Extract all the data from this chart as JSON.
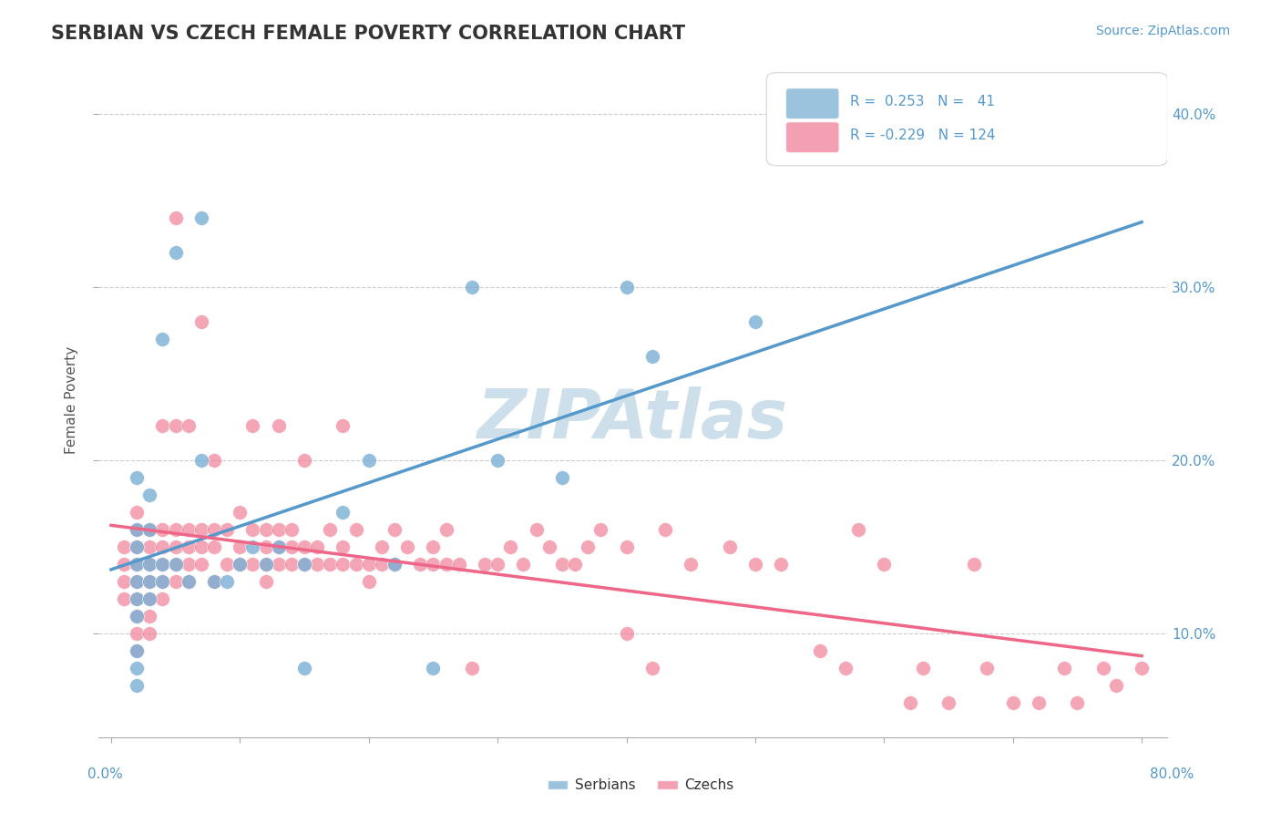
{
  "title": "SERBIAN VS CZECH FEMALE POVERTY CORRELATION CHART",
  "source_text": "Source: ZipAtlas.com",
  "ylabel": "Female Poverty",
  "serbian_color": "#7aafd4",
  "czech_color": "#f08098",
  "serbian_line_color": "#5599cc",
  "czech_line_color": "#ee6688",
  "dashed_line_color": "#99cccc",
  "watermark_color": "#c8dce8",
  "background_color": "#ffffff",
  "grid_color": "#cccccc",
  "R_serbian": 0.253,
  "N_serbian": 41,
  "R_czech": -0.229,
  "N_czech": 124,
  "serbian_points": [
    [
      0.02,
      0.19
    ],
    [
      0.02,
      0.16
    ],
    [
      0.02,
      0.15
    ],
    [
      0.02,
      0.14
    ],
    [
      0.02,
      0.13
    ],
    [
      0.02,
      0.12
    ],
    [
      0.02,
      0.11
    ],
    [
      0.02,
      0.09
    ],
    [
      0.02,
      0.08
    ],
    [
      0.02,
      0.07
    ],
    [
      0.03,
      0.18
    ],
    [
      0.03,
      0.16
    ],
    [
      0.03,
      0.14
    ],
    [
      0.03,
      0.13
    ],
    [
      0.03,
      0.12
    ],
    [
      0.04,
      0.27
    ],
    [
      0.04,
      0.14
    ],
    [
      0.04,
      0.13
    ],
    [
      0.05,
      0.32
    ],
    [
      0.05,
      0.14
    ],
    [
      0.06,
      0.13
    ],
    [
      0.07,
      0.34
    ],
    [
      0.07,
      0.2
    ],
    [
      0.08,
      0.13
    ],
    [
      0.09,
      0.13
    ],
    [
      0.1,
      0.14
    ],
    [
      0.11,
      0.15
    ],
    [
      0.12,
      0.14
    ],
    [
      0.13,
      0.15
    ],
    [
      0.15,
      0.08
    ],
    [
      0.15,
      0.14
    ],
    [
      0.18,
      0.17
    ],
    [
      0.2,
      0.2
    ],
    [
      0.22,
      0.14
    ],
    [
      0.25,
      0.08
    ],
    [
      0.28,
      0.3
    ],
    [
      0.3,
      0.2
    ],
    [
      0.35,
      0.19
    ],
    [
      0.4,
      0.3
    ],
    [
      0.42,
      0.26
    ],
    [
      0.5,
      0.28
    ]
  ],
  "czech_points": [
    [
      0.01,
      0.15
    ],
    [
      0.01,
      0.14
    ],
    [
      0.01,
      0.13
    ],
    [
      0.01,
      0.12
    ],
    [
      0.02,
      0.17
    ],
    [
      0.02,
      0.16
    ],
    [
      0.02,
      0.15
    ],
    [
      0.02,
      0.14
    ],
    [
      0.02,
      0.13
    ],
    [
      0.02,
      0.12
    ],
    [
      0.02,
      0.11
    ],
    [
      0.02,
      0.1
    ],
    [
      0.02,
      0.09
    ],
    [
      0.03,
      0.16
    ],
    [
      0.03,
      0.15
    ],
    [
      0.03,
      0.14
    ],
    [
      0.03,
      0.13
    ],
    [
      0.03,
      0.12
    ],
    [
      0.03,
      0.11
    ],
    [
      0.03,
      0.1
    ],
    [
      0.04,
      0.22
    ],
    [
      0.04,
      0.16
    ],
    [
      0.04,
      0.15
    ],
    [
      0.04,
      0.14
    ],
    [
      0.04,
      0.13
    ],
    [
      0.04,
      0.12
    ],
    [
      0.05,
      0.34
    ],
    [
      0.05,
      0.22
    ],
    [
      0.05,
      0.16
    ],
    [
      0.05,
      0.15
    ],
    [
      0.05,
      0.14
    ],
    [
      0.05,
      0.13
    ],
    [
      0.06,
      0.22
    ],
    [
      0.06,
      0.16
    ],
    [
      0.06,
      0.15
    ],
    [
      0.06,
      0.14
    ],
    [
      0.06,
      0.13
    ],
    [
      0.07,
      0.28
    ],
    [
      0.07,
      0.16
    ],
    [
      0.07,
      0.15
    ],
    [
      0.07,
      0.14
    ],
    [
      0.08,
      0.2
    ],
    [
      0.08,
      0.16
    ],
    [
      0.08,
      0.15
    ],
    [
      0.08,
      0.13
    ],
    [
      0.09,
      0.16
    ],
    [
      0.09,
      0.14
    ],
    [
      0.1,
      0.17
    ],
    [
      0.1,
      0.15
    ],
    [
      0.1,
      0.14
    ],
    [
      0.11,
      0.22
    ],
    [
      0.11,
      0.16
    ],
    [
      0.11,
      0.14
    ],
    [
      0.12,
      0.16
    ],
    [
      0.12,
      0.15
    ],
    [
      0.12,
      0.14
    ],
    [
      0.12,
      0.13
    ],
    [
      0.13,
      0.22
    ],
    [
      0.13,
      0.16
    ],
    [
      0.13,
      0.15
    ],
    [
      0.13,
      0.14
    ],
    [
      0.14,
      0.16
    ],
    [
      0.14,
      0.15
    ],
    [
      0.14,
      0.14
    ],
    [
      0.15,
      0.2
    ],
    [
      0.15,
      0.15
    ],
    [
      0.15,
      0.14
    ],
    [
      0.16,
      0.15
    ],
    [
      0.16,
      0.14
    ],
    [
      0.17,
      0.16
    ],
    [
      0.17,
      0.14
    ],
    [
      0.18,
      0.22
    ],
    [
      0.18,
      0.15
    ],
    [
      0.18,
      0.14
    ],
    [
      0.19,
      0.16
    ],
    [
      0.19,
      0.14
    ],
    [
      0.2,
      0.14
    ],
    [
      0.2,
      0.13
    ],
    [
      0.21,
      0.15
    ],
    [
      0.21,
      0.14
    ],
    [
      0.22,
      0.16
    ],
    [
      0.22,
      0.14
    ],
    [
      0.23,
      0.15
    ],
    [
      0.24,
      0.14
    ],
    [
      0.25,
      0.15
    ],
    [
      0.25,
      0.14
    ],
    [
      0.26,
      0.16
    ],
    [
      0.26,
      0.14
    ],
    [
      0.27,
      0.14
    ],
    [
      0.28,
      0.08
    ],
    [
      0.29,
      0.14
    ],
    [
      0.3,
      0.14
    ],
    [
      0.31,
      0.15
    ],
    [
      0.32,
      0.14
    ],
    [
      0.33,
      0.16
    ],
    [
      0.34,
      0.15
    ],
    [
      0.35,
      0.14
    ],
    [
      0.36,
      0.14
    ],
    [
      0.37,
      0.15
    ],
    [
      0.38,
      0.16
    ],
    [
      0.4,
      0.1
    ],
    [
      0.4,
      0.15
    ],
    [
      0.42,
      0.08
    ],
    [
      0.43,
      0.16
    ],
    [
      0.45,
      0.14
    ],
    [
      0.48,
      0.15
    ],
    [
      0.5,
      0.14
    ],
    [
      0.52,
      0.14
    ],
    [
      0.55,
      0.09
    ],
    [
      0.57,
      0.08
    ],
    [
      0.58,
      0.16
    ],
    [
      0.6,
      0.14
    ],
    [
      0.62,
      0.06
    ],
    [
      0.63,
      0.08
    ],
    [
      0.65,
      0.06
    ],
    [
      0.67,
      0.14
    ],
    [
      0.68,
      0.08
    ],
    [
      0.7,
      0.06
    ],
    [
      0.72,
      0.06
    ],
    [
      0.74,
      0.08
    ],
    [
      0.75,
      0.06
    ],
    [
      0.77,
      0.08
    ],
    [
      0.78,
      0.07
    ],
    [
      0.8,
      0.08
    ]
  ]
}
